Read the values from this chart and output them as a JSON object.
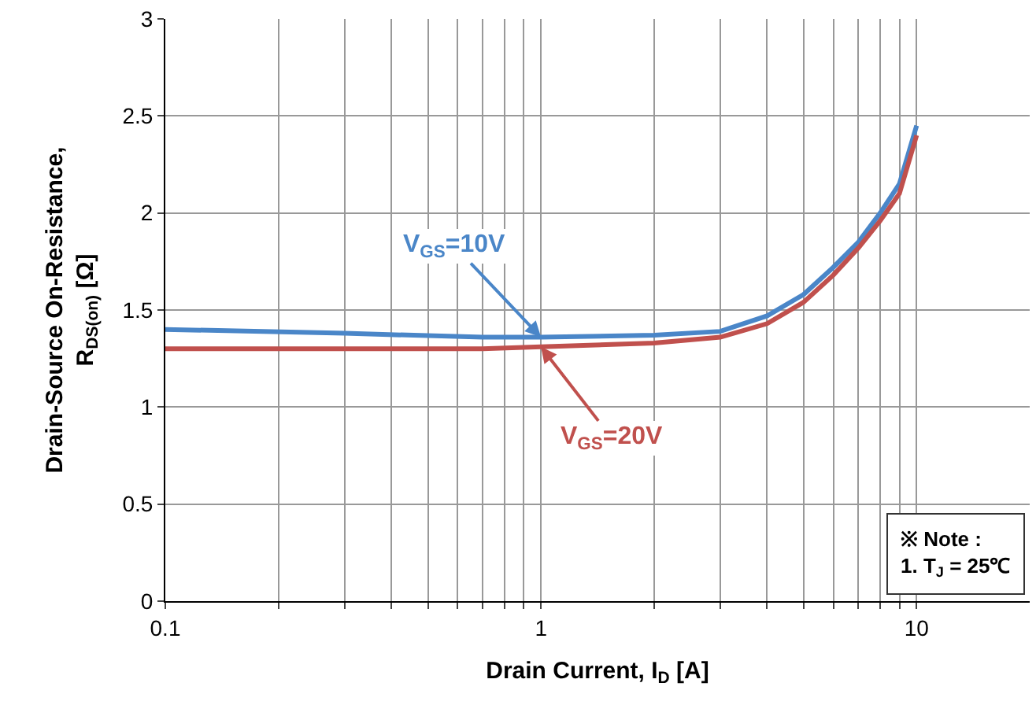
{
  "chart_data": {
    "type": "line",
    "xlabel": "Drain Current, I$_{D}$ [A]",
    "ylabel": "Drain-Source On-Resistance, R$_{DS(on)}$ [Ω]",
    "log": "x",
    "grid": true,
    "legend": false,
    "marker": "none",
    "line_style": "solid",
    "xlim": [
      0.1,
      20
    ],
    "xticks": [
      0.1,
      {
        "value": 0.2,
        "label": null
      },
      {
        "value": 0.3,
        "label": null
      },
      {
        "value": 0.4,
        "label": null
      },
      {
        "value": 0.5,
        "label": null
      },
      {
        "value": 0.6,
        "label": null
      },
      {
        "value": 0.7,
        "label": null
      },
      {
        "value": 0.8,
        "label": null
      },
      {
        "value": 0.9,
        "label": null
      },
      1,
      {
        "value": 2,
        "label": null
      },
      {
        "value": 3,
        "label": null
      },
      {
        "value": 4,
        "label": null
      },
      {
        "value": 5,
        "label": null
      },
      {
        "value": 6,
        "label": null
      },
      {
        "value": 7,
        "label": null
      },
      {
        "value": 8,
        "label": null
      },
      {
        "value": 9,
        "label": null
      },
      10
    ],
    "ylim": [
      0,
      3
    ],
    "yticks": [
      0,
      0.5,
      1,
      1.5,
      2,
      2.5,
      3
    ],
    "series": [
      {
        "name": "V$_{GS}$=10V",
        "color": "#4a86c8",
        "x": [
          0.1,
          0.3,
          0.7,
          1,
          2,
          3,
          4,
          5,
          6,
          7,
          8,
          9,
          10
        ],
        "values": [
          1.4,
          1.38,
          1.36,
          1.36,
          1.37,
          1.39,
          1.47,
          1.58,
          1.72,
          1.85,
          2.0,
          2.15,
          2.45
        ]
      },
      {
        "name": "V$_{GS}$=20V",
        "color": "#c0504d",
        "x": [
          0.1,
          0.3,
          0.7,
          1,
          2,
          3,
          4,
          5,
          6,
          7,
          8,
          9,
          10
        ],
        "values": [
          1.3,
          1.3,
          1.3,
          1.31,
          1.33,
          1.36,
          1.43,
          1.54,
          1.68,
          1.82,
          1.96,
          2.1,
          2.4
        ]
      }
    ],
    "annotations": [
      "※ Note :",
      "1. T$_{J}$ = 25℃"
    ]
  }
}
